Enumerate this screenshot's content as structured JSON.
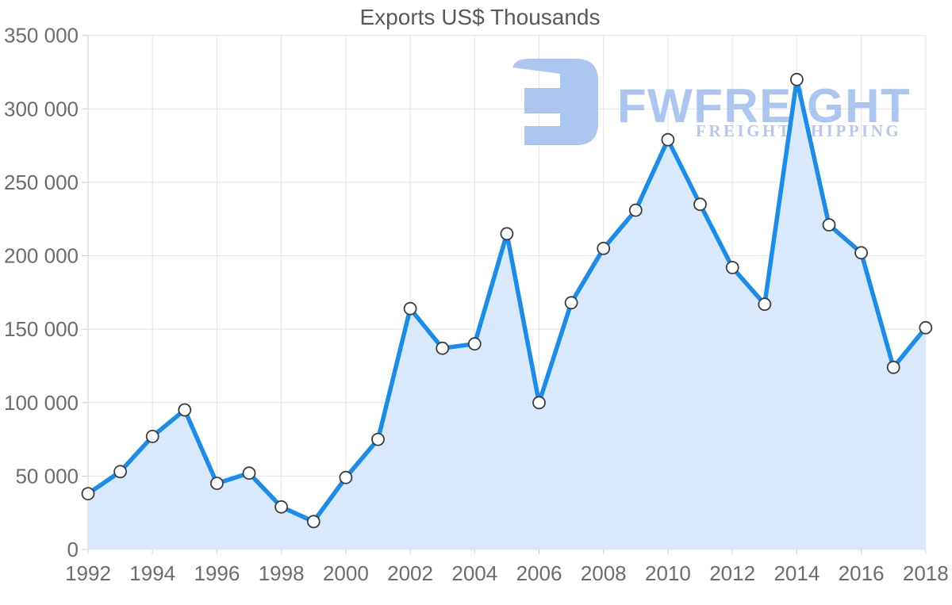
{
  "page": {
    "background": "#ffffff"
  },
  "logo": {
    "name": "FWFREIGHT",
    "tagline": "FREIGHT SHIPPING",
    "icon": "fwfreight-monogram-icon",
    "color": "#a7c3f0",
    "tagline_color": "#b6c3ea"
  },
  "chart_data": {
    "type": "area",
    "title": "Exports US$ Thousands",
    "x": [
      1992,
      1993,
      1994,
      1995,
      1996,
      1997,
      1998,
      1999,
      2000,
      2001,
      2002,
      2003,
      2004,
      2005,
      2006,
      2007,
      2008,
      2009,
      2010,
      2011,
      2012,
      2013,
      2014,
      2015,
      2016,
      2017,
      2018
    ],
    "values": [
      38000,
      53000,
      77000,
      95000,
      45000,
      52000,
      29000,
      19000,
      49000,
      75000,
      164000,
      137000,
      140000,
      215000,
      100000,
      168000,
      205000,
      231000,
      279000,
      235000,
      192000,
      167000,
      320000,
      221000,
      202000,
      124000,
      151000
    ],
    "series_name": "Exports US$ Thousands",
    "xlabel": "",
    "ylabel": "",
    "ylim": [
      0,
      350000
    ],
    "y_ticks": [
      0,
      50000,
      100000,
      150000,
      200000,
      250000,
      300000,
      350000
    ],
    "y_tick_labels": [
      "0",
      "50 000",
      "100 000",
      "150 000",
      "200 000",
      "250 000",
      "300 000",
      "350 000"
    ],
    "x_ticks": [
      1992,
      1994,
      1996,
      1998,
      2000,
      2002,
      2004,
      2006,
      2008,
      2010,
      2012,
      2014,
      2016,
      2018
    ],
    "x_tick_labels": [
      "1992",
      "1994",
      "1996",
      "1998",
      "2000",
      "2002",
      "2004",
      "2006",
      "2008",
      "2010",
      "2012",
      "2014",
      "2016",
      "2018"
    ],
    "grid": true,
    "legend": "none",
    "line_color": "#1a8dec",
    "fill_color": "#d9e9fb",
    "marker_fill": "#ffffff",
    "marker_stroke": "#3c3c3c",
    "grid_color": "#e4e4e4",
    "axis_color": "#cfcfcf",
    "label_color": "#6c6c6c",
    "title_color": "#595959"
  }
}
